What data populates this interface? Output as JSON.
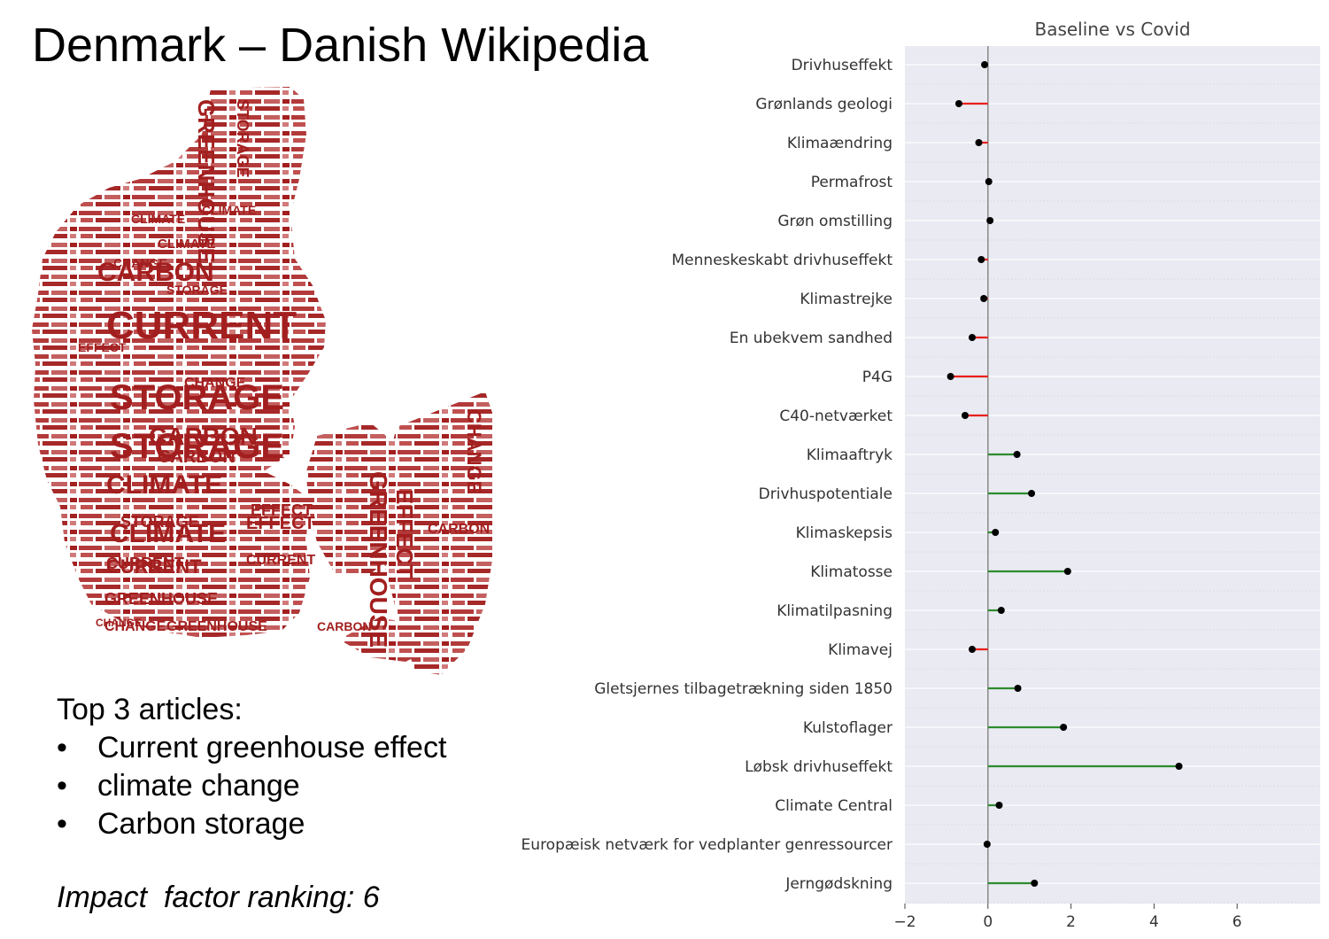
{
  "slide": {
    "title": "Denmark – Danish Wikipedia",
    "top_heading": "Top 3 articles:",
    "top_articles": [
      "Current greenhouse effect",
      "climate change",
      "Carbon storage"
    ],
    "impact_label": "Impact  factor ranking: 6"
  },
  "wordcloud": {
    "shape": "map of Denmark",
    "color": "#a31f1f",
    "words": [
      {
        "text": "CURRENT",
        "size": "large"
      },
      {
        "text": "STORAGE",
        "size": "large"
      },
      {
        "text": "STORAGE",
        "size": "large"
      },
      {
        "text": "CARBON",
        "size": "medium"
      },
      {
        "text": "CARBON",
        "size": "medium"
      },
      {
        "text": "CLIMATE",
        "size": "medium"
      },
      {
        "text": "CURRENT",
        "size": "medium"
      },
      {
        "text": "GREENHOUSE",
        "size": "medium"
      },
      {
        "text": "CLIMATE",
        "size": "medium"
      },
      {
        "text": "EFFECT",
        "size": "medium"
      },
      {
        "text": "CARBON",
        "size": "small"
      },
      {
        "text": "CLIMATE",
        "size": "small"
      },
      {
        "text": "STORAGE",
        "size": "small"
      },
      {
        "text": "EFFECT",
        "size": "small"
      },
      {
        "text": "CHANGE",
        "size": "small"
      },
      {
        "text": "GREENHOUSE",
        "size": "small"
      },
      {
        "text": "CURRENT",
        "size": "small"
      },
      {
        "text": "CHANGE",
        "size": "small"
      },
      {
        "text": "STORAGE",
        "size": "small"
      },
      {
        "text": "GREENHOUSE",
        "size": "small"
      },
      {
        "text": "EFFECT",
        "size": "small"
      },
      {
        "text": "CHANGE",
        "size": "small"
      },
      {
        "text": "CARBON",
        "size": "small"
      },
      {
        "text": "CLIMATE",
        "size": "small"
      },
      {
        "text": "EFFECT",
        "size": "small"
      },
      {
        "text": "STORAGE",
        "size": "small"
      },
      {
        "text": "CHANGE",
        "size": "small"
      },
      {
        "text": "GREENHOUSE",
        "size": "small"
      },
      {
        "text": "CURRENT",
        "size": "small"
      },
      {
        "text": "CARBON",
        "size": "small"
      },
      {
        "text": "CLIMATE",
        "size": "small"
      },
      {
        "text": "CHANGE",
        "size": "small"
      }
    ]
  },
  "chart_data": {
    "type": "lollipop",
    "title": "Baseline vs Covid",
    "xlim": [
      -2,
      8
    ],
    "xticks": [
      -2,
      0,
      2,
      4,
      6
    ],
    "xtick_labels": [
      "−2",
      "0",
      "2",
      "4",
      "6"
    ],
    "grid": "horizontal",
    "positive_color": "#2e8b2e",
    "negative_color": "#e8201a",
    "marker_color": "#000000",
    "background": "#e9eaf2",
    "categories": [
      "Drivhuseffekt",
      "Grønlands geologi",
      "Klimaændring",
      "Permafrost",
      "Grøn omstilling",
      "Menneskeskabt drivhuseffekt",
      "Klimastrejke",
      "En ubekvem sandhed",
      "P4G",
      "C40-netværket",
      "Klimaaftryk",
      "Drivhuspotentiale",
      "Klimaskepsis",
      "Klimatosse",
      "Klimatilpasning",
      "Klimavej",
      "Gletsjernes tilbagetrækning siden 1850",
      "Kulstoflager",
      "Løbsk drivhuseffekt",
      "Climate Central",
      "Europæisk netværk for vedplanter genressourcer",
      "Jerngødskning"
    ],
    "values": [
      -0.08,
      -0.7,
      -0.22,
      0.02,
      0.05,
      -0.16,
      -0.1,
      -0.38,
      -0.9,
      -0.55,
      0.7,
      1.05,
      0.18,
      1.92,
      0.32,
      -0.38,
      0.72,
      1.82,
      4.6,
      0.27,
      -0.02,
      1.12
    ]
  }
}
